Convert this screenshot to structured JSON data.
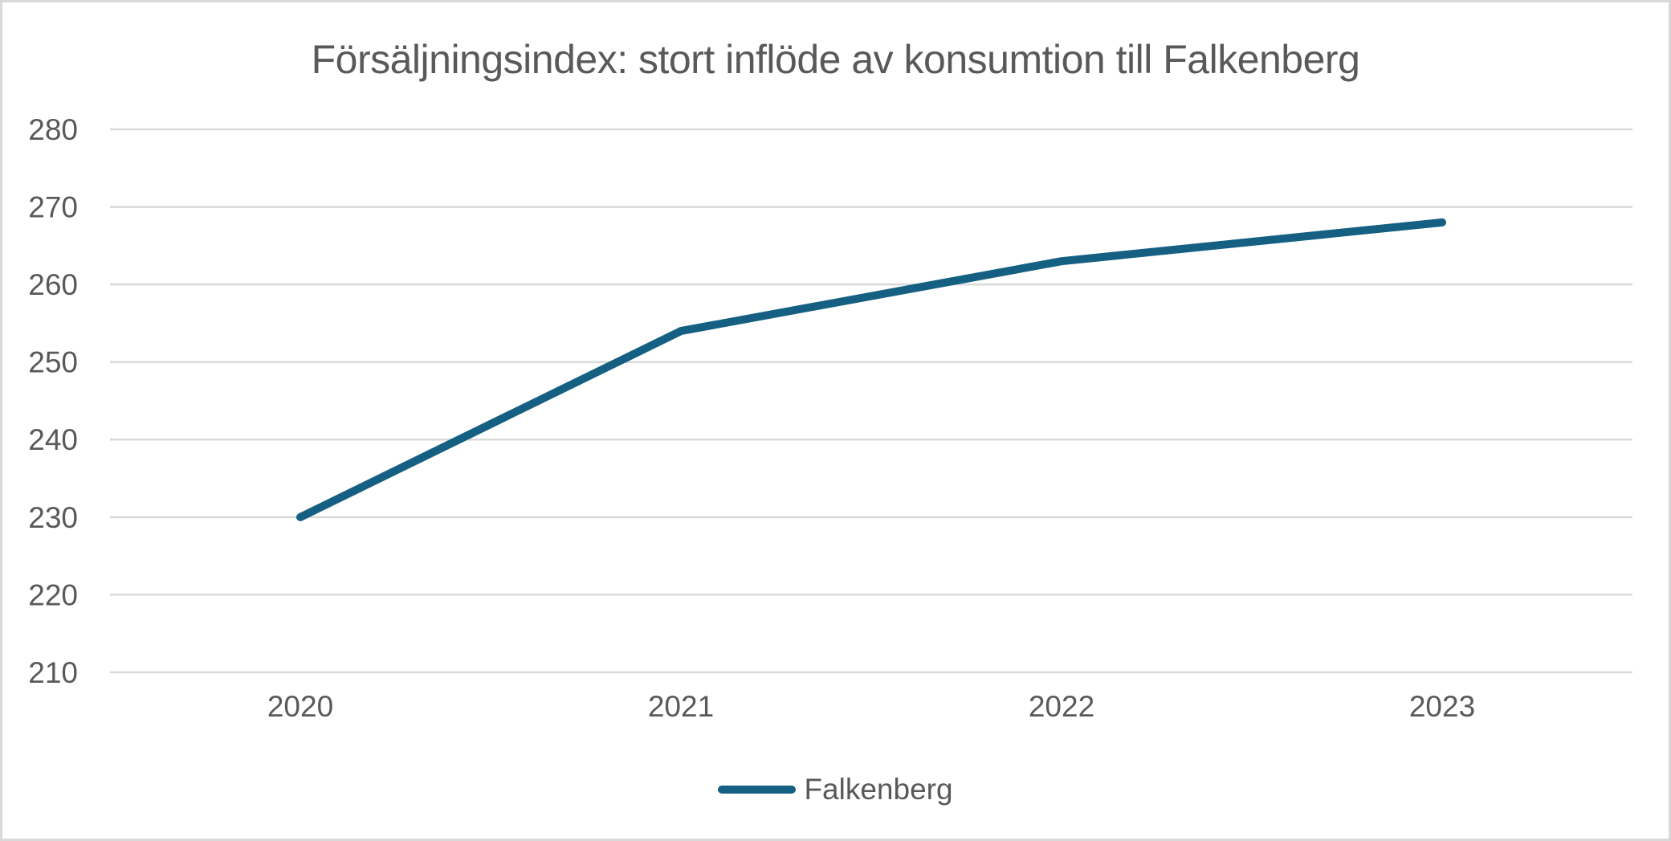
{
  "colors": {
    "accent": "#156082",
    "grid": "#D9D9D9",
    "text": "#595959",
    "border": "#D9D9D9",
    "background": "#FFFFFF"
  },
  "legend": {
    "position": "bottom-center",
    "items": [
      {
        "label": "Falkenberg",
        "marker": "line-marker",
        "color": "#156082"
      }
    ]
  },
  "chart_data": {
    "type": "line",
    "title": "Försäljningsindex: stort inflöde av konsumtion till Falkenberg",
    "categories": [
      "2020",
      "2021",
      "2022",
      "2023"
    ],
    "series": [
      {
        "name": "Falkenberg",
        "values": [
          230,
          254,
          263,
          268
        ],
        "color": "#156082"
      }
    ],
    "xlabel": "",
    "ylabel": "",
    "ylim": [
      210,
      280
    ],
    "y_ticks": [
      210,
      220,
      230,
      240,
      250,
      260,
      270,
      280
    ],
    "grid": "horizontal",
    "legend_position": "bottom"
  }
}
